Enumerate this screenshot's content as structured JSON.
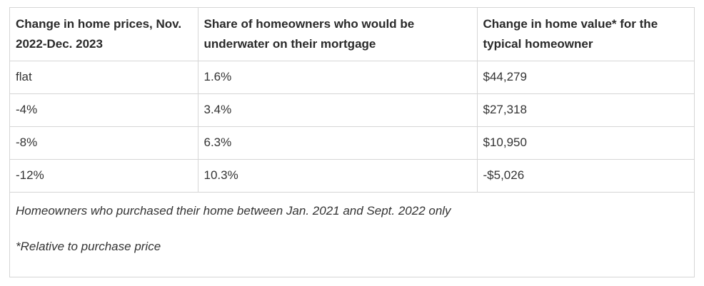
{
  "table": {
    "headers": [
      "Change in home prices, Nov. 2022-Dec. 2023",
      "Share of homeowners who would be underwater on their mortgage",
      "Change in home value* for the typical homeowner"
    ],
    "rows": [
      [
        "flat",
        "1.6%",
        "$44,279"
      ],
      [
        "-4%",
        "3.4%",
        "$27,318"
      ],
      [
        "-8%",
        "6.3%",
        "$10,950"
      ],
      [
        "-12%",
        "10.3%",
        "-$5,026"
      ]
    ]
  },
  "footnotes": {
    "scope": "Homeowners who purchased their home between Jan. 2021 and Sept. 2022 only",
    "relative": "*Relative to purchase price"
  }
}
